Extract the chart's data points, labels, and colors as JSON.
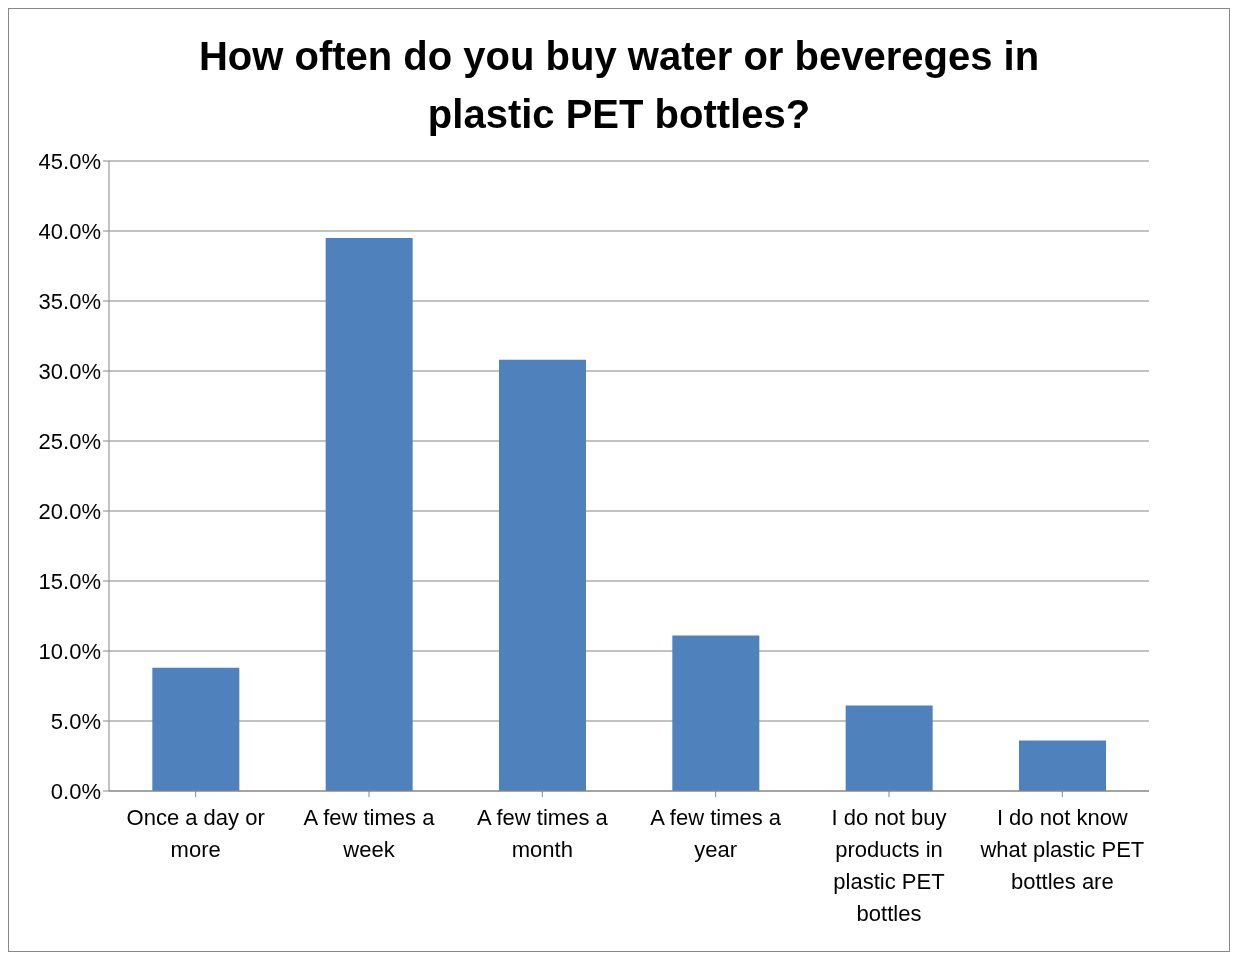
{
  "chart_data": {
    "type": "bar",
    "title": "How often do you buy water or bevereges in plastic PET bottles?",
    "categories": [
      "Once a day or more",
      "A few times a week",
      "A few times a month",
      "A few times a year",
      "I do not buy products in plastic PET bottles",
      "I do not know what plastic PET bottles are"
    ],
    "values": [
      8.8,
      39.5,
      30.8,
      11.1,
      6.1,
      3.6
    ],
    "color": "#4f81bd",
    "ylim": [
      0,
      45
    ],
    "yticks": [
      {
        "value": 0,
        "label": "0.0%"
      },
      {
        "value": 5,
        "label": "5.0%"
      },
      {
        "value": 10,
        "label": "10.0%"
      },
      {
        "value": 15,
        "label": "15.0%"
      },
      {
        "value": 20,
        "label": "20.0%"
      },
      {
        "value": 25,
        "label": "25.0%"
      },
      {
        "value": 30,
        "label": "30.0%"
      },
      {
        "value": 35,
        "label": "35.0%"
      },
      {
        "value": 40,
        "label": "40.0%"
      },
      {
        "value": 45,
        "label": "45.0%"
      }
    ],
    "grid": "y"
  }
}
